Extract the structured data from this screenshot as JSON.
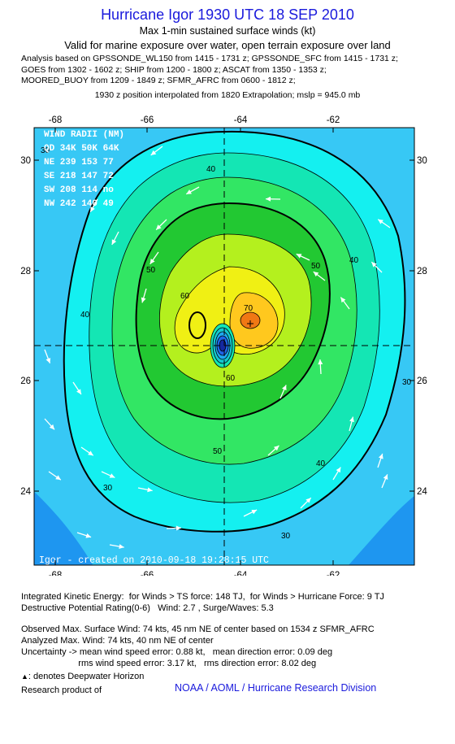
{
  "header": {
    "title": "Hurricane Igor 1930 UTC 18 SEP 2010",
    "subtitle": "Max 1-min sustained surface winds (kt)",
    "validity": "Valid for marine exposure over water, open terrain exposure over land",
    "analysis_lines": [
      "Analysis based on GPSSONDE_WL150 from 1415 - 1731 z; GPSSONDE_SFC from 1415 - 1731 z;",
      "GOES from 1302 - 1602 z; SHIP from 1200 - 1800 z; ASCAT from 1350 - 1353 z;",
      "MOORED_BUOY from 1209 - 1849 z; SFMR_AFRC from 0600 - 1812 z;"
    ],
    "position_note": "1930 z position interpolated from 1820 Extrapolation; mslp = 945.0 mb"
  },
  "map": {
    "lon_ticks": [
      "-68",
      "-66",
      "-64",
      "-62"
    ],
    "lat_ticks": [
      "30",
      "28",
      "26",
      "24"
    ],
    "lon_range": [
      -68.5,
      -60.5
    ],
    "lat_range": [
      22.8,
      30.6
    ],
    "center": {
      "lon": -64.45,
      "lat": 26.6
    },
    "max_wind_marker": {
      "lon": -63.8,
      "lat": 27.0
    },
    "contour_labels": [
      "30",
      "40",
      "50",
      "60",
      "70"
    ],
    "contour_colors": {
      "lt30": "#1e96f0",
      "30": "#37c8f5",
      "40": "#14f0f0",
      "50": "#14e6b4",
      "60": "#32e664",
      "70": "#22c832",
      "80": "#b4f01e",
      "90": "#f0f014",
      "100": "#ffc81e",
      "core": "#f07814"
    },
    "wind_radii": {
      "title": "WIND RADII (NM)",
      "header": "QD  34K  50K  64K",
      "rows": [
        "NE  239  153   77",
        "SE  218  147   72",
        "SW  208  114   no",
        "NW  242  140   49"
      ]
    },
    "credit": "Igor  -  created on  2010-09-18  19:28:15  UTC"
  },
  "footer": {
    "ike_line1": "Integrated Kinetic Energy:  for Winds > TS force: 148 TJ,  for Winds > Hurricane Force: 9 TJ",
    "ike_line2": "Destructive Potential Rating(0-6)   Wind: 2.7 , Surge/Waves: 5.3",
    "obs_line1": "Observed Max. Surface Wind: 74 kts, 45 nm NE of center based on 1534 z SFMR_AFRC",
    "obs_line2": "Analyzed Max. Wind: 74 kts, 40 nm NE of center",
    "unc_line1": "Uncertainty -> mean wind speed error: 0.88 kt,   mean direction error: 0.09 deg",
    "unc_line2": "                       rms wind speed error: 3.17 kt,   rms direction error: 8.02 deg",
    "deepwater": ": denotes Deepwater Horizon",
    "research": "Research product of",
    "org": "NOAA / AOML / Hurricane Research Division"
  }
}
